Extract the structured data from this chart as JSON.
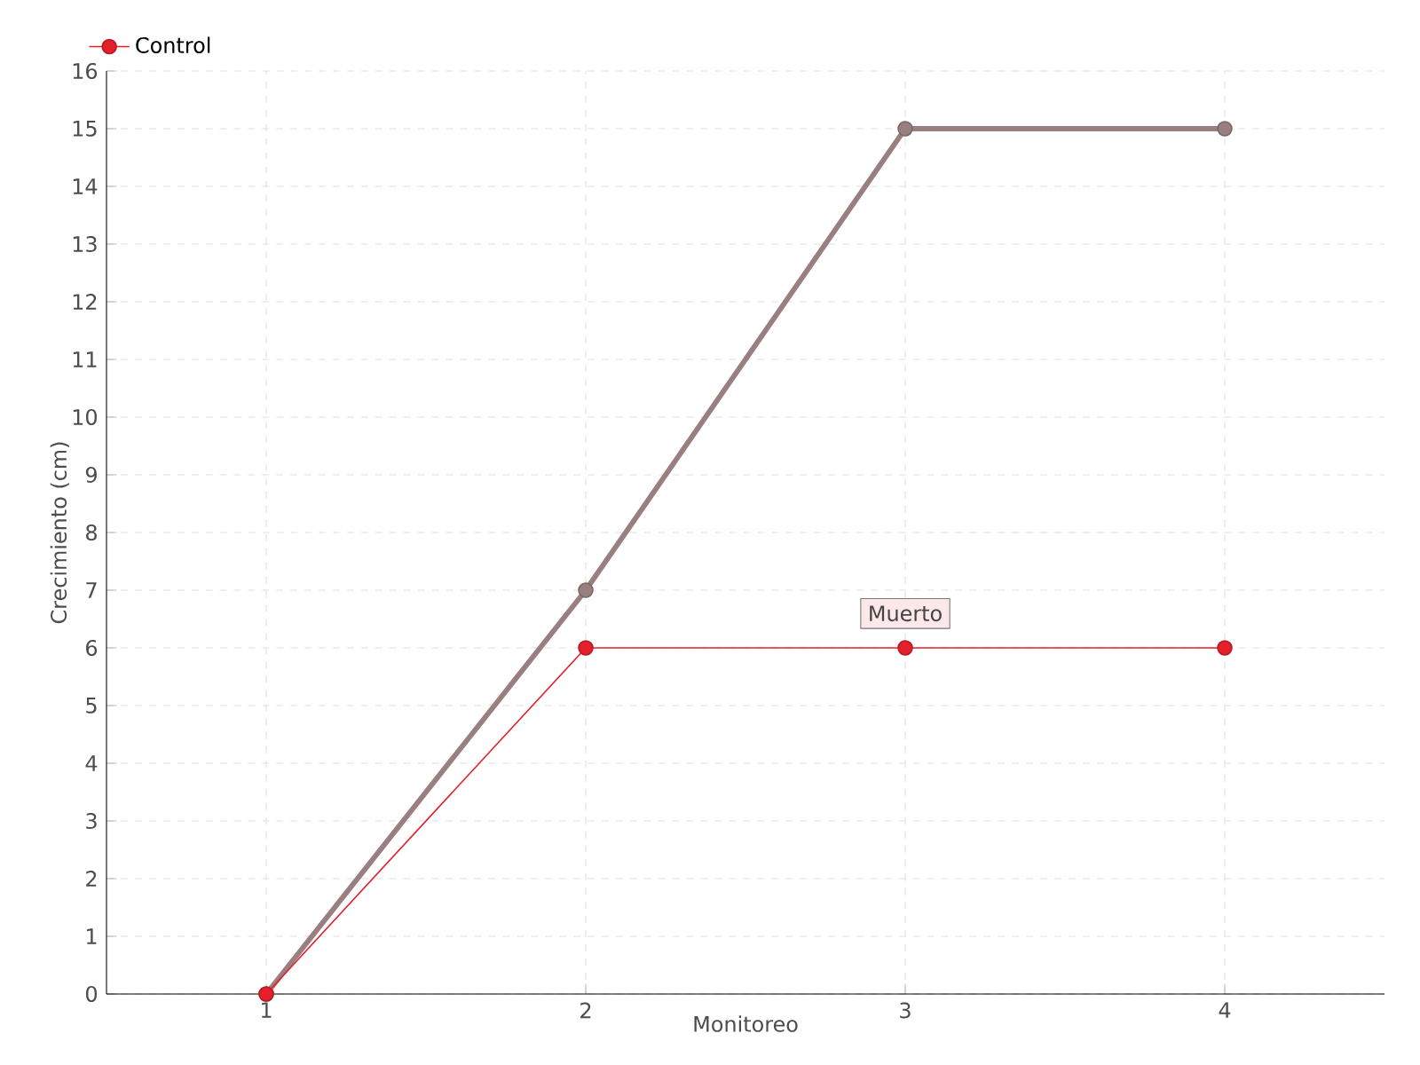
{
  "chart_data": {
    "type": "line",
    "xlabel": "Monitoreo",
    "ylabel": "Crecimiento (cm)",
    "categories": [
      "1",
      "2",
      "3",
      "4"
    ],
    "series": [
      {
        "color": "#9a7f80",
        "values": [
          0,
          7,
          15,
          15
        ]
      },
      {
        "name": "Control",
        "color": "#e3202b",
        "values": [
          0,
          6,
          6,
          6
        ]
      }
    ],
    "ylim": [
      0,
      16
    ],
    "yticks": [
      0,
      1,
      2,
      3,
      4,
      5,
      6,
      7,
      8,
      9,
      10,
      11,
      12,
      13,
      14,
      15,
      16
    ],
    "grid": true,
    "legend": "top left",
    "marker": "circle",
    "annotations": [
      {
        "text": "Muerto",
        "x": "3",
        "y": 6
      }
    ]
  }
}
